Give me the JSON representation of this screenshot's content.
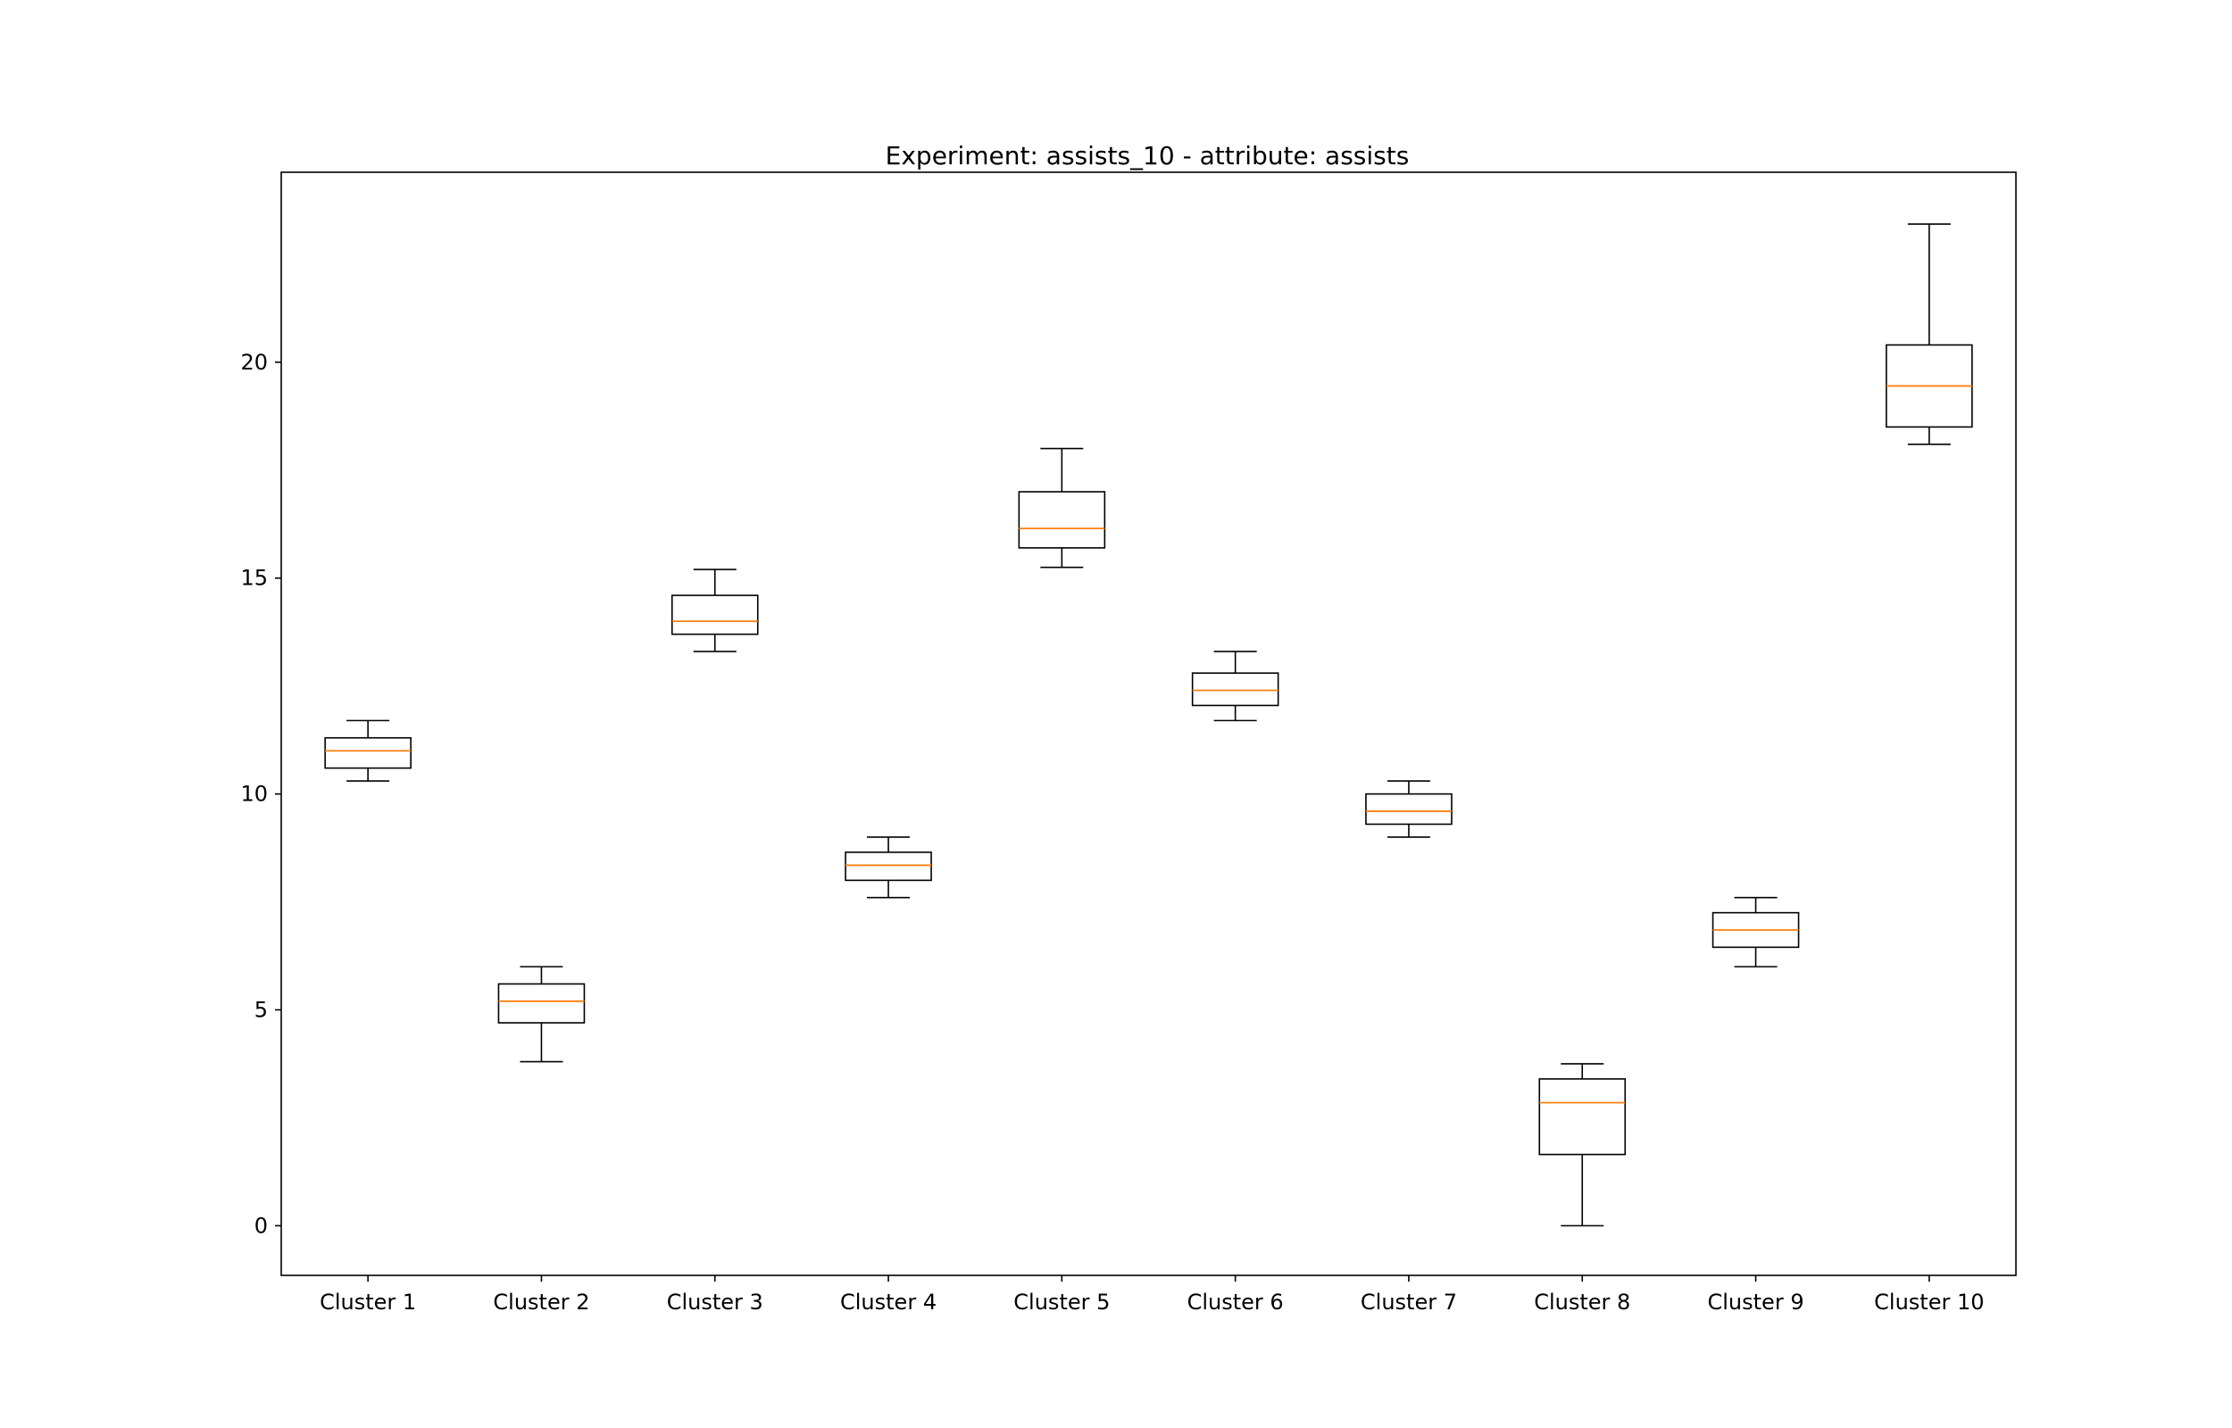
{
  "chart_data": {
    "type": "boxplot",
    "title": "Experiment: assists_10 - attribute: assists",
    "xlabel": "",
    "ylabel": "",
    "ylim": [
      -1.15,
      24.4
    ],
    "yticks": [
      0,
      5,
      10,
      15,
      20
    ],
    "ytick_labels": [
      "0",
      "5",
      "10",
      "15",
      "20"
    ],
    "grid": false,
    "colors": {
      "box": "#000000",
      "median": "#ff7f0e"
    },
    "categories": [
      "Cluster 1",
      "Cluster 2",
      "Cluster 3",
      "Cluster 4",
      "Cluster 5",
      "Cluster 6",
      "Cluster 7",
      "Cluster 8",
      "Cluster 9",
      "Cluster 10"
    ],
    "boxes": [
      {
        "whislo": 10.3,
        "q1": 10.6,
        "med": 11.0,
        "q3": 11.3,
        "whishi": 11.7
      },
      {
        "whislo": 3.8,
        "q1": 4.7,
        "med": 5.2,
        "q3": 5.6,
        "whishi": 6.0
      },
      {
        "whislo": 13.3,
        "q1": 13.7,
        "med": 14.0,
        "q3": 14.6,
        "whishi": 15.2
      },
      {
        "whislo": 7.6,
        "q1": 8.0,
        "med": 8.35,
        "q3": 8.65,
        "whishi": 9.0
      },
      {
        "whislo": 15.25,
        "q1": 15.7,
        "med": 16.15,
        "q3": 17.0,
        "whishi": 18.0
      },
      {
        "whislo": 11.7,
        "q1": 12.05,
        "med": 12.4,
        "q3": 12.8,
        "whishi": 13.3
      },
      {
        "whislo": 9.0,
        "q1": 9.3,
        "med": 9.6,
        "q3": 10.0,
        "whishi": 10.3
      },
      {
        "whislo": 0.0,
        "q1": 1.65,
        "med": 2.85,
        "q3": 3.4,
        "whishi": 3.75
      },
      {
        "whislo": 6.0,
        "q1": 6.45,
        "med": 6.85,
        "q3": 7.25,
        "whishi": 7.6
      },
      {
        "whislo": 18.1,
        "q1": 18.5,
        "med": 19.45,
        "q3": 20.4,
        "whishi": 23.2
      }
    ]
  }
}
